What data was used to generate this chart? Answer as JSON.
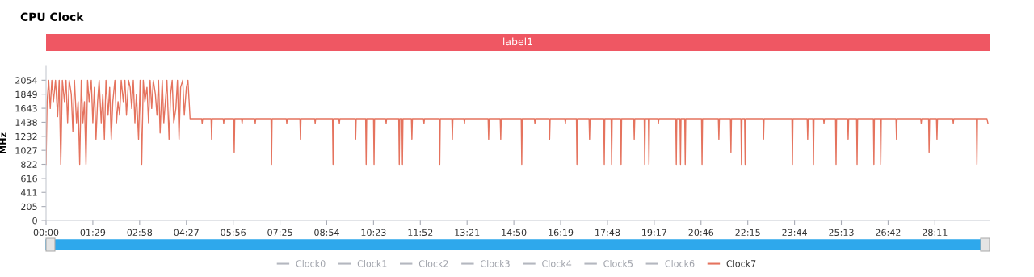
{
  "chart_data": {
    "type": "line",
    "title": "CPU Clock",
    "ylabel": "MHz",
    "xlim": [
      0,
      1795
    ],
    "ylim": [
      0,
      2259
    ],
    "xticks": [
      {
        "value": 0,
        "label": "00:00"
      },
      {
        "value": 89,
        "label": "01:29"
      },
      {
        "value": 178,
        "label": "02:58"
      },
      {
        "value": 267,
        "label": "04:27"
      },
      {
        "value": 356,
        "label": "05:56"
      },
      {
        "value": 445,
        "label": "07:25"
      },
      {
        "value": 534,
        "label": "08:54"
      },
      {
        "value": 623,
        "label": "10:23"
      },
      {
        "value": 712,
        "label": "11:52"
      },
      {
        "value": 801,
        "label": "13:21"
      },
      {
        "value": 890,
        "label": "14:50"
      },
      {
        "value": 979,
        "label": "16:19"
      },
      {
        "value": 1068,
        "label": "17:48"
      },
      {
        "value": 1157,
        "label": "19:17"
      },
      {
        "value": 1246,
        "label": "20:46"
      },
      {
        "value": 1335,
        "label": "22:15"
      },
      {
        "value": 1424,
        "label": "23:44"
      },
      {
        "value": 1513,
        "label": "25:13"
      },
      {
        "value": 1602,
        "label": "26:42"
      },
      {
        "value": 1691,
        "label": "28:11"
      }
    ],
    "yticks": [
      0,
      205,
      411,
      616,
      822,
      1027,
      1232,
      1438,
      1643,
      1849,
      2054
    ],
    "grid": false,
    "legend": "bottom",
    "marker": "none",
    "line_style": "solid",
    "annotations": [
      "label1"
    ],
    "series": [
      {
        "name": "Clock0",
        "color": "#b4b7bf"
      },
      {
        "name": "Clock1",
        "color": "#b4b7bf"
      },
      {
        "name": "Clock2",
        "color": "#b4b7bf"
      },
      {
        "name": "Clock3",
        "color": "#b4b7bf"
      },
      {
        "name": "Clock4",
        "color": "#b4b7bf"
      },
      {
        "name": "Clock5",
        "color": "#b4b7bf"
      },
      {
        "name": "Clock6",
        "color": "#b4b7bf"
      },
      {
        "name": "Clock7",
        "color": "#e5735e",
        "x": [
          0,
          2,
          5,
          8,
          11,
          14,
          18,
          22,
          25,
          28,
          31,
          35,
          38,
          41,
          44,
          48,
          51,
          54,
          58,
          61,
          64,
          67,
          70,
          73,
          76,
          79,
          82,
          86,
          89,
          92,
          95,
          98,
          101,
          105,
          108,
          111,
          114,
          118,
          121,
          124,
          127,
          131,
          134,
          137,
          140,
          143,
          147,
          150,
          153,
          157,
          160,
          163,
          166,
          169,
          172,
          176,
          179,
          182,
          185,
          188,
          192,
          195,
          198,
          201,
          204,
          208,
          211,
          214,
          217,
          221,
          224,
          227,
          230,
          234,
          237,
          240,
          243,
          247,
          250,
          253,
          256,
          260,
          263,
          267,
          270,
          274,
          296,
          297,
          298,
          314,
          315,
          316,
          337,
          338,
          339,
          357,
          358,
          359,
          372,
          373,
          374,
          397,
          398,
          399,
          428,
          429,
          430,
          457,
          458,
          459,
          483,
          484,
          485,
          511,
          512,
          513,
          545,
          546,
          547,
          557,
          558,
          559,
          588,
          589,
          590,
          608,
          609,
          610,
          623,
          624,
          625,
          646,
          647,
          648,
          671,
          672,
          673,
          677,
          678,
          679,
          695,
          696,
          697,
          718,
          719,
          720,
          748,
          749,
          750,
          772,
          773,
          774,
          795,
          796,
          797,
          841,
          842,
          843,
          864,
          865,
          866,
          904,
          905,
          906,
          929,
          930,
          931,
          957,
          958,
          959,
          987,
          988,
          989,
          1009,
          1010,
          1011,
          1033,
          1034,
          1035,
          1061,
          1062,
          1063,
          1075,
          1076,
          1077,
          1093,
          1094,
          1095,
          1118,
          1119,
          1120,
          1138,
          1139,
          1140,
          1146,
          1147,
          1148,
          1164,
          1165,
          1166,
          1198,
          1199,
          1200,
          1206,
          1207,
          1208,
          1215,
          1216,
          1217,
          1247,
          1248,
          1249,
          1279,
          1280,
          1281,
          1302,
          1303,
          1304,
          1322,
          1323,
          1324,
          1329,
          1330,
          1331,
          1364,
          1365,
          1366,
          1419,
          1420,
          1421,
          1448,
          1449,
          1450,
          1459,
          1460,
          1461,
          1479,
          1480,
          1481,
          1502,
          1503,
          1504,
          1525,
          1526,
          1527,
          1542,
          1543,
          1544,
          1574,
          1575,
          1576,
          1587,
          1588,
          1589,
          1617,
          1618,
          1619,
          1664,
          1665,
          1666,
          1679,
          1680,
          1681,
          1694,
          1695,
          1696,
          1725,
          1726,
          1727,
          1770,
          1771,
          1772,
          1790,
          1792
        ],
        "values": [
          822,
          1740,
          2054,
          1640,
          2054,
          1740,
          2054,
          1520,
          2054,
          822,
          2054,
          1740,
          2054,
          1430,
          2054,
          1850,
          1300,
          2054,
          1430,
          1740,
          822,
          2054,
          1430,
          1740,
          822,
          2054,
          1740,
          2054,
          1430,
          1950,
          1190,
          1740,
          2054,
          1430,
          1850,
          1190,
          2054,
          1540,
          1950,
          1190,
          1740,
          2054,
          1430,
          1740,
          1540,
          2054,
          1740,
          2054,
          1540,
          2054,
          1950,
          1640,
          2054,
          1430,
          1850,
          1190,
          2054,
          822,
          2054,
          1740,
          1950,
          1430,
          2054,
          1640,
          2054,
          1850,
          1540,
          2054,
          1280,
          2054,
          1430,
          1740,
          2054,
          1190,
          1850,
          2054,
          1430,
          1640,
          2054,
          1190,
          1950,
          2054,
          1540,
          1950,
          2054,
          1490,
          1490,
          1420,
          1490,
          1490,
          1190,
          1490,
          1490,
          1420,
          1490,
          1490,
          1000,
          1490,
          1490,
          1420,
          1490,
          1490,
          1420,
          1490,
          1490,
          822,
          1490,
          1490,
          1420,
          1490,
          1490,
          1190,
          1490,
          1490,
          1420,
          1490,
          1490,
          822,
          1490,
          1490,
          1420,
          1490,
          1490,
          1190,
          1490,
          1490,
          822,
          1490,
          1490,
          822,
          1490,
          1490,
          1420,
          1490,
          1490,
          822,
          1490,
          1490,
          822,
          1490,
          1490,
          1190,
          1490,
          1490,
          1420,
          1490,
          1490,
          822,
          1490,
          1490,
          1190,
          1490,
          1490,
          1420,
          1490,
          1490,
          1190,
          1490,
          1490,
          1190,
          1490,
          1490,
          822,
          1490,
          1490,
          1420,
          1490,
          1490,
          1190,
          1490,
          1490,
          1420,
          1490,
          1490,
          822,
          1490,
          1490,
          1190,
          1490,
          1490,
          822,
          1490,
          1490,
          822,
          1490,
          1490,
          822,
          1490,
          1490,
          1190,
          1490,
          1490,
          822,
          1490,
          1490,
          822,
          1490,
          1490,
          1420,
          1490,
          1490,
          822,
          1490,
          1490,
          822,
          1490,
          1490,
          822,
          1490,
          1490,
          822,
          1490,
          1490,
          1190,
          1490,
          1490,
          1000,
          1490,
          1490,
          822,
          1490,
          1490,
          822,
          1490,
          1490,
          1190,
          1490,
          1490,
          822,
          1490,
          1490,
          1190,
          1490,
          1490,
          822,
          1490,
          1490,
          1420,
          1490,
          1490,
          822,
          1490,
          1490,
          1190,
          1490,
          1490,
          822,
          1490,
          1490,
          822,
          1490,
          1490,
          822,
          1490,
          1490,
          1190,
          1490,
          1490,
          1420,
          1490,
          1490,
          1000,
          1490,
          1490,
          1190,
          1490,
          1490,
          1420,
          1490,
          1490,
          822,
          1490,
          1490,
          1420
        ]
      }
    ]
  }
}
